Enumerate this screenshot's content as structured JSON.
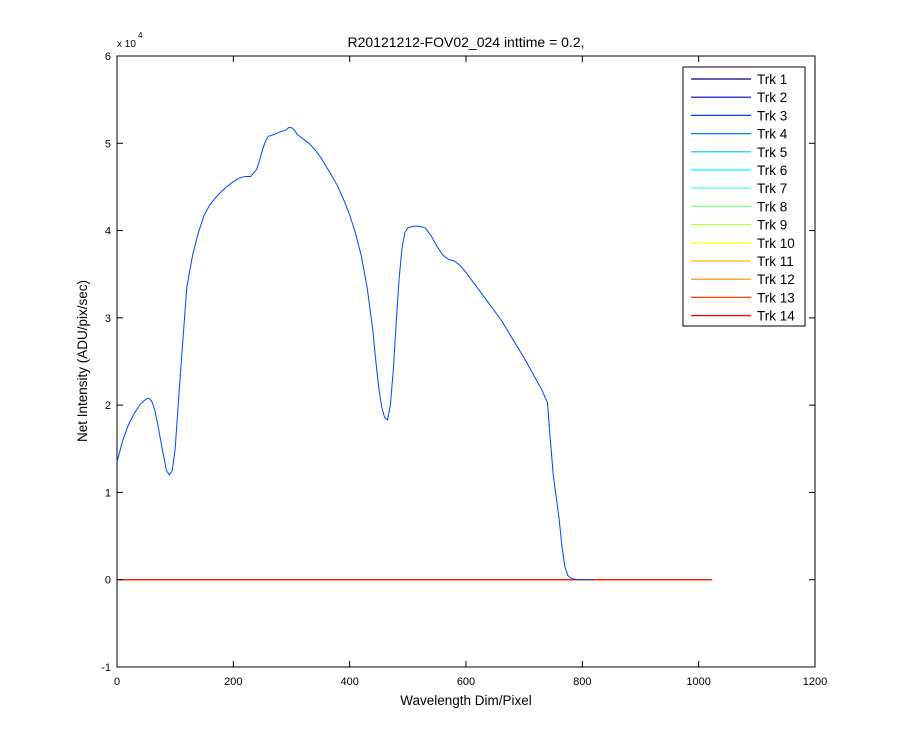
{
  "chart_data": {
    "type": "line",
    "title": "R20121212-FOV02_024 inttime = 0.2,",
    "xlabel": "Wavelength Dim/Pixel",
    "ylabel": "Net Intensity (ADU/pix/sec)",
    "xlim": [
      0,
      1200
    ],
    "ylim": [
      -10000,
      60000
    ],
    "x_ticks": [
      0,
      200,
      400,
      600,
      800,
      1000,
      1200
    ],
    "y_ticks": [
      -1,
      0,
      1,
      2,
      3,
      4,
      5,
      6
    ],
    "y_tick_labels": [
      "-1",
      "0",
      "1",
      "2",
      "3",
      "4",
      "5",
      "6"
    ],
    "y_exponent_label": {
      "base": "x 10",
      "power": "4"
    },
    "grid": false,
    "legend_position": "top-right",
    "series": [
      {
        "name": "Trk 1",
        "color": "#00008f",
        "x": [
          0,
          1023
        ],
        "y": [
          0,
          0
        ]
      },
      {
        "name": "Trk 2",
        "color": "#0000cc",
        "x": [
          0,
          1023
        ],
        "y": [
          0,
          0
        ]
      },
      {
        "name": "Trk 3",
        "color": "#0044ff",
        "x": [
          0,
          10,
          20,
          30,
          40,
          50,
          55,
          60,
          65,
          70,
          75,
          80,
          85,
          90,
          95,
          100,
          105,
          110,
          115,
          120,
          130,
          140,
          150,
          160,
          170,
          180,
          190,
          200,
          210,
          220,
          230,
          240,
          245,
          250,
          255,
          260,
          270,
          280,
          290,
          295,
          300,
          305,
          310,
          320,
          330,
          340,
          350,
          360,
          370,
          380,
          390,
          400,
          410,
          420,
          430,
          440,
          445,
          450,
          455,
          460,
          465,
          470,
          475,
          480,
          485,
          490,
          495,
          500,
          510,
          520,
          530,
          540,
          550,
          560,
          570,
          580,
          590,
          600,
          620,
          640,
          660,
          680,
          700,
          710,
          720,
          730,
          740,
          745,
          750,
          755,
          760,
          765,
          770,
          775,
          780,
          785,
          790,
          800,
          820
        ],
        "y": [
          13500,
          16000,
          17800,
          19100,
          20100,
          20700,
          20800,
          20400,
          19400,
          17800,
          16000,
          14200,
          12500,
          12000,
          12500,
          15000,
          19800,
          24500,
          29000,
          33500,
          37200,
          39800,
          41800,
          43000,
          43800,
          44500,
          45100,
          45600,
          46000,
          46200,
          46200,
          47000,
          48000,
          49200,
          50200,
          50800,
          51000,
          51300,
          51500,
          51800,
          51800,
          51500,
          51000,
          50500,
          50000,
          49300,
          48400,
          47300,
          46200,
          45000,
          43500,
          41800,
          39700,
          37100,
          33500,
          28500,
          25000,
          22000,
          19800,
          18600,
          18300,
          20000,
          24000,
          29500,
          34500,
          38000,
          39800,
          40300,
          40500,
          40500,
          40300,
          39400,
          38200,
          37200,
          36700,
          36500,
          36000,
          35200,
          33400,
          31600,
          29800,
          27600,
          25400,
          24200,
          23000,
          21800,
          20300,
          16000,
          12000,
          9500,
          7000,
          3800,
          1500,
          500,
          200,
          80,
          40,
          10,
          0
        ]
      },
      {
        "name": "Trk 4",
        "color": "#0080ff",
        "x": [
          0,
          1023
        ],
        "y": [
          0,
          0
        ]
      },
      {
        "name": "Trk 5",
        "color": "#00bfff",
        "x": [
          0,
          1023
        ],
        "y": [
          0,
          0
        ]
      },
      {
        "name": "Trk 6",
        "color": "#00ffff",
        "x": [
          0,
          1023
        ],
        "y": [
          0,
          0
        ]
      },
      {
        "name": "Trk 7",
        "color": "#40ffbf",
        "x": [
          0,
          1023
        ],
        "y": [
          0,
          0
        ]
      },
      {
        "name": "Trk 8",
        "color": "#80ff80",
        "x": [
          0,
          1023
        ],
        "y": [
          0,
          0
        ]
      },
      {
        "name": "Trk 9",
        "color": "#bfff40",
        "x": [
          0,
          1023
        ],
        "y": [
          0,
          0
        ]
      },
      {
        "name": "Trk 10",
        "color": "#ffff00",
        "x": [
          0,
          1023
        ],
        "y": [
          0,
          0
        ]
      },
      {
        "name": "Trk 11",
        "color": "#ffbf00",
        "x": [
          0,
          1023
        ],
        "y": [
          0,
          0
        ]
      },
      {
        "name": "Trk 12",
        "color": "#ff8000",
        "x": [
          0,
          1023
        ],
        "y": [
          0,
          0
        ]
      },
      {
        "name": "Trk 13",
        "color": "#ff4000",
        "x": [
          0,
          1023
        ],
        "y": [
          0,
          0
        ]
      },
      {
        "name": "Trk 14",
        "color": "#ff0000",
        "x": [
          0,
          1023
        ],
        "y": [
          0,
          0
        ]
      }
    ]
  }
}
